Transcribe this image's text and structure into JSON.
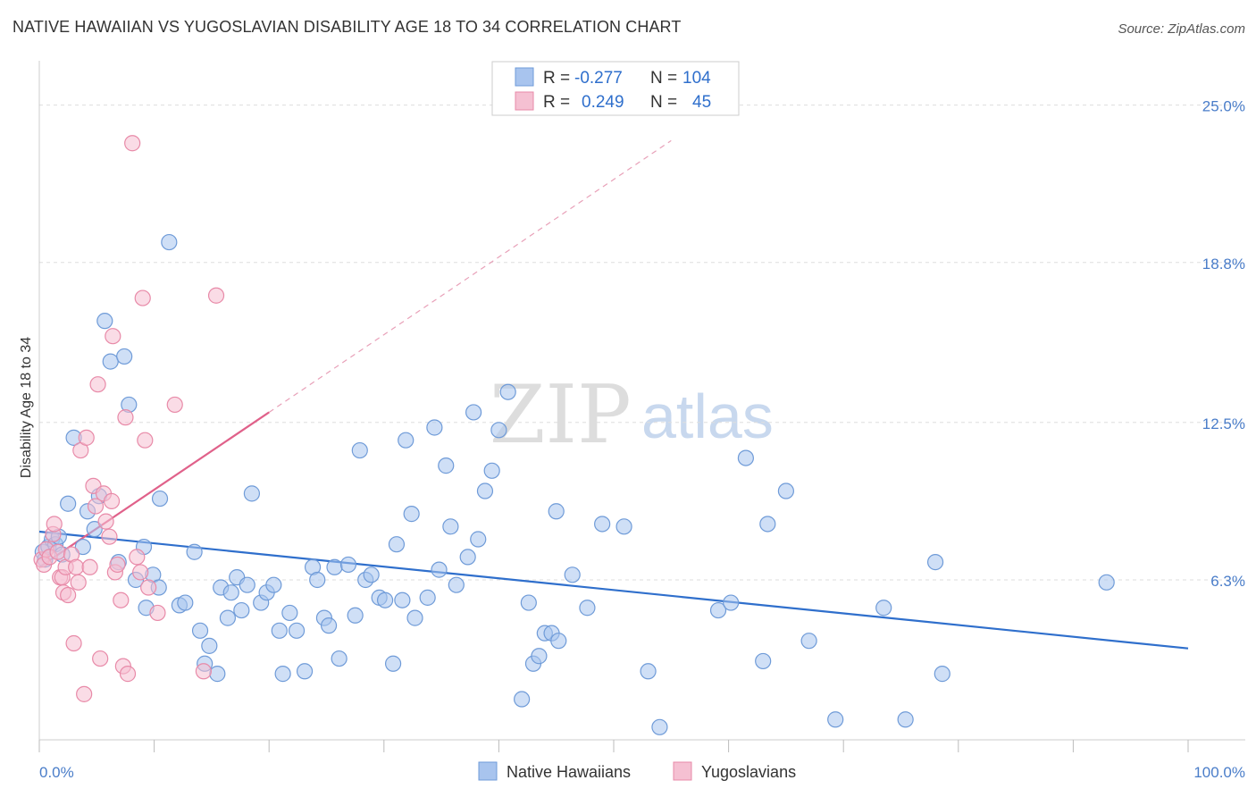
{
  "title": "NATIVE HAWAIIAN VS YUGOSLAVIAN DISABILITY AGE 18 TO 34 CORRELATION CHART",
  "source": "Source: ZipAtlas.com",
  "watermark": {
    "zip": "ZIP",
    "atlas": "atlas"
  },
  "legend": {
    "rows": [
      {
        "r_label": "R =",
        "r_value": "-0.277",
        "n_label": "N =",
        "n_value": "104",
        "color": "#a8c4ee"
      },
      {
        "r_label": "R =",
        "r_value": "0.249",
        "n_label": "N =",
        "n_value": "45",
        "color": "#f5b8cc"
      }
    ]
  },
  "colors": {
    "blue_fill": "#a8c4ee",
    "blue_stroke": "#6f9bd8",
    "blue_line": "#2f6fcc",
    "pink_fill": "#f5c0d2",
    "pink_stroke": "#e88aa8",
    "pink_line": "#e0618a",
    "grid": "#dddddd",
    "axis_label": "#4a7dc9"
  },
  "chart_data": {
    "type": "scatter",
    "title": "NATIVE HAWAIIAN VS YUGOSLAVIAN DISABILITY AGE 18 TO 34 CORRELATION CHART",
    "xlabel": "",
    "ylabel": "Disability Age 18 to 34",
    "xlim": [
      0,
      100
    ],
    "ylim": [
      0,
      26.5
    ],
    "x_tick_labels": [
      "0.0%",
      "100.0%"
    ],
    "y_ticks": [
      6.3,
      12.5,
      18.8,
      25.0
    ],
    "y_tick_labels": [
      "6.3%",
      "12.5%",
      "18.8%",
      "25.0%"
    ],
    "legend_position": "top-center",
    "series": [
      {
        "name": "Native Hawaiians",
        "r": -0.277,
        "n": 104,
        "trend": {
          "x": [
            0,
            100
          ],
          "y": [
            8.2,
            3.6
          ]
        },
        "points": [
          [
            0.3,
            7.4
          ],
          [
            0.5,
            7.1
          ],
          [
            0.8,
            7.6
          ],
          [
            1.1,
            7.9
          ],
          [
            1.4,
            7.7
          ],
          [
            1.7,
            8.0
          ],
          [
            2.0,
            7.3
          ],
          [
            2.5,
            9.3
          ],
          [
            3.0,
            11.9
          ],
          [
            3.8,
            7.6
          ],
          [
            4.2,
            9.0
          ],
          [
            4.8,
            8.3
          ],
          [
            5.2,
            9.6
          ],
          [
            5.7,
            16.5
          ],
          [
            6.2,
            14.9
          ],
          [
            6.9,
            7.0
          ],
          [
            7.4,
            15.1
          ],
          [
            7.8,
            13.2
          ],
          [
            8.4,
            6.3
          ],
          [
            9.1,
            7.6
          ],
          [
            9.3,
            5.2
          ],
          [
            9.9,
            6.5
          ],
          [
            10.4,
            6.0
          ],
          [
            10.5,
            9.5
          ],
          [
            11.3,
            19.6
          ],
          [
            12.2,
            5.3
          ],
          [
            12.7,
            5.4
          ],
          [
            13.5,
            7.4
          ],
          [
            14.0,
            4.3
          ],
          [
            14.4,
            3.0
          ],
          [
            14.8,
            3.7
          ],
          [
            15.5,
            2.6
          ],
          [
            15.8,
            6.0
          ],
          [
            16.4,
            4.8
          ],
          [
            16.7,
            5.8
          ],
          [
            17.2,
            6.4
          ],
          [
            17.6,
            5.1
          ],
          [
            18.1,
            6.1
          ],
          [
            18.5,
            9.7
          ],
          [
            19.3,
            5.4
          ],
          [
            19.8,
            5.8
          ],
          [
            20.4,
            6.1
          ],
          [
            20.9,
            4.3
          ],
          [
            21.2,
            2.6
          ],
          [
            21.8,
            5.0
          ],
          [
            22.4,
            4.3
          ],
          [
            23.1,
            2.7
          ],
          [
            23.8,
            6.8
          ],
          [
            24.2,
            6.3
          ],
          [
            24.8,
            4.8
          ],
          [
            25.2,
            4.5
          ],
          [
            25.7,
            6.8
          ],
          [
            26.1,
            3.2
          ],
          [
            26.9,
            6.9
          ],
          [
            27.5,
            4.9
          ],
          [
            27.9,
            11.4
          ],
          [
            28.4,
            6.3
          ],
          [
            28.9,
            6.5
          ],
          [
            29.6,
            5.6
          ],
          [
            30.1,
            5.5
          ],
          [
            30.8,
            3.0
          ],
          [
            31.1,
            7.7
          ],
          [
            31.6,
            5.5
          ],
          [
            31.9,
            11.8
          ],
          [
            32.4,
            8.9
          ],
          [
            32.7,
            4.8
          ],
          [
            33.8,
            5.6
          ],
          [
            34.4,
            12.3
          ],
          [
            34.8,
            6.7
          ],
          [
            35.4,
            10.8
          ],
          [
            35.8,
            8.4
          ],
          [
            36.3,
            6.1
          ],
          [
            37.3,
            7.2
          ],
          [
            37.8,
            12.9
          ],
          [
            38.2,
            7.9
          ],
          [
            38.8,
            9.8
          ],
          [
            39.4,
            10.6
          ],
          [
            40.0,
            12.2
          ],
          [
            40.8,
            13.7
          ],
          [
            42.0,
            1.6
          ],
          [
            42.6,
            5.4
          ],
          [
            43.0,
            3.0
          ],
          [
            43.5,
            3.3
          ],
          [
            44.0,
            4.2
          ],
          [
            44.6,
            4.2
          ],
          [
            45.0,
            9.0
          ],
          [
            45.2,
            3.9
          ],
          [
            46.4,
            6.5
          ],
          [
            47.7,
            5.2
          ],
          [
            49.0,
            8.5
          ],
          [
            50.9,
            8.4
          ],
          [
            53.0,
            2.7
          ],
          [
            54.0,
            0.5
          ],
          [
            59.1,
            5.1
          ],
          [
            60.2,
            5.4
          ],
          [
            61.5,
            11.1
          ],
          [
            63.0,
            3.1
          ],
          [
            63.4,
            8.5
          ],
          [
            65.0,
            9.8
          ],
          [
            67.0,
            3.9
          ],
          [
            69.3,
            0.8
          ],
          [
            73.5,
            5.2
          ],
          [
            75.4,
            0.8
          ],
          [
            78.0,
            7.0
          ],
          [
            78.6,
            2.6
          ],
          [
            92.9,
            6.2
          ]
        ]
      },
      {
        "name": "Yugoslavians",
        "r": 0.249,
        "n": 45,
        "trend": {
          "x": [
            0,
            20
          ],
          "y": [
            6.8,
            12.9
          ]
        },
        "trend_extension": {
          "x": [
            20,
            55
          ],
          "y": [
            12.9,
            23.6
          ]
        },
        "points": [
          [
            0.2,
            7.1
          ],
          [
            0.4,
            6.9
          ],
          [
            0.6,
            7.5
          ],
          [
            0.9,
            7.2
          ],
          [
            1.2,
            8.1
          ],
          [
            1.3,
            8.5
          ],
          [
            1.6,
            7.4
          ],
          [
            1.8,
            6.4
          ],
          [
            2.0,
            6.4
          ],
          [
            2.1,
            5.8
          ],
          [
            2.3,
            6.8
          ],
          [
            2.5,
            5.7
          ],
          [
            2.8,
            7.3
          ],
          [
            3.0,
            3.8
          ],
          [
            3.2,
            6.8
          ],
          [
            3.4,
            6.2
          ],
          [
            3.6,
            11.4
          ],
          [
            3.9,
            1.8
          ],
          [
            4.1,
            11.9
          ],
          [
            4.4,
            6.8
          ],
          [
            4.7,
            10.0
          ],
          [
            4.9,
            9.2
          ],
          [
            5.1,
            14.0
          ],
          [
            5.3,
            3.2
          ],
          [
            5.6,
            9.7
          ],
          [
            5.8,
            8.6
          ],
          [
            6.1,
            8.0
          ],
          [
            6.3,
            9.4
          ],
          [
            6.4,
            15.9
          ],
          [
            6.6,
            6.6
          ],
          [
            6.8,
            6.9
          ],
          [
            7.1,
            5.5
          ],
          [
            7.3,
            2.9
          ],
          [
            7.5,
            12.7
          ],
          [
            7.7,
            2.6
          ],
          [
            8.1,
            23.5
          ],
          [
            8.5,
            7.2
          ],
          [
            8.8,
            6.6
          ],
          [
            9.0,
            17.4
          ],
          [
            9.2,
            11.8
          ],
          [
            9.5,
            6.0
          ],
          [
            10.3,
            5.0
          ],
          [
            11.8,
            13.2
          ],
          [
            14.3,
            2.7
          ],
          [
            15.4,
            17.5
          ]
        ]
      }
    ]
  }
}
